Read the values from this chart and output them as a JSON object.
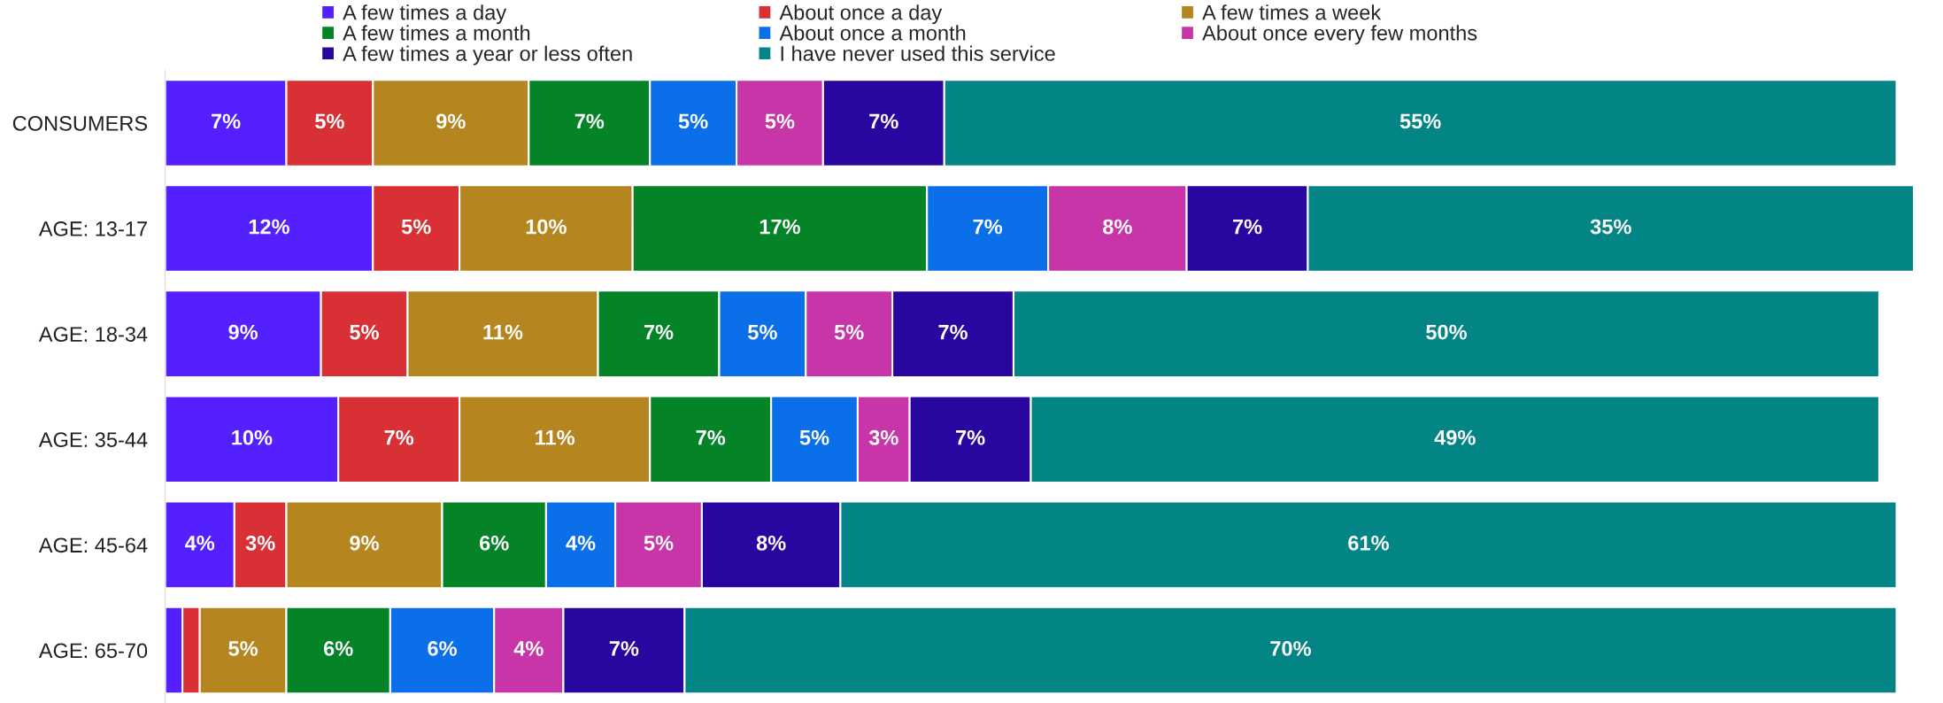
{
  "chart_data": {
    "type": "bar",
    "orientation": "horizontal",
    "stacked": true,
    "legend": "top",
    "grid": false,
    "categories": [
      "CONSUMERS",
      "AGE: 13-17",
      "AGE: 18-34",
      "AGE: 35-44",
      "AGE: 45-64",
      "AGE: 65-70"
    ],
    "series": [
      {
        "name": "A few times a day",
        "color": "#5420ff",
        "values": [
          7,
          12,
          9,
          10,
          4,
          1
        ],
        "value_labels": [
          "7%",
          "12%",
          "9%",
          "10%",
          "4%",
          null
        ]
      },
      {
        "name": "About once a day",
        "color": "#d93035",
        "values": [
          5,
          5,
          5,
          7,
          3,
          1
        ],
        "value_labels": [
          "5%",
          "5%",
          "5%",
          "7%",
          "3%",
          null
        ]
      },
      {
        "name": "A few times a week",
        "color": "#b5851f",
        "values": [
          9,
          10,
          11,
          11,
          9,
          5
        ],
        "value_labels": [
          "9%",
          "10%",
          "11%",
          "11%",
          "9%",
          "5%"
        ]
      },
      {
        "name": "A few times a month",
        "color": "#048327",
        "values": [
          7,
          17,
          7,
          7,
          6,
          6
        ],
        "value_labels": [
          "7%",
          "17%",
          "7%",
          "7%",
          "6%",
          "6%"
        ]
      },
      {
        "name": "About once a month",
        "color": "#0a6fe8",
        "values": [
          5,
          7,
          5,
          5,
          4,
          6
        ],
        "value_labels": [
          "5%",
          "7%",
          "5%",
          "5%",
          "4%",
          "6%"
        ]
      },
      {
        "name": "About once every few months",
        "color": "#c835a8",
        "values": [
          5,
          8,
          5,
          3,
          5,
          4
        ],
        "value_labels": [
          "5%",
          "8%",
          "5%",
          "3%",
          "5%",
          "4%"
        ]
      },
      {
        "name": "A few times a year or less often",
        "color": "#2a06a0",
        "values": [
          7,
          7,
          7,
          7,
          8,
          7
        ],
        "value_labels": [
          "7%",
          "7%",
          "7%",
          "7%",
          "8%",
          "7%"
        ]
      },
      {
        "name": "I have never used this service",
        "color": "#028584",
        "values": [
          55,
          35,
          50,
          49,
          61,
          70
        ],
        "value_labels": [
          "55%",
          "35%",
          "50%",
          "49%",
          "61%",
          "70%"
        ]
      }
    ]
  }
}
